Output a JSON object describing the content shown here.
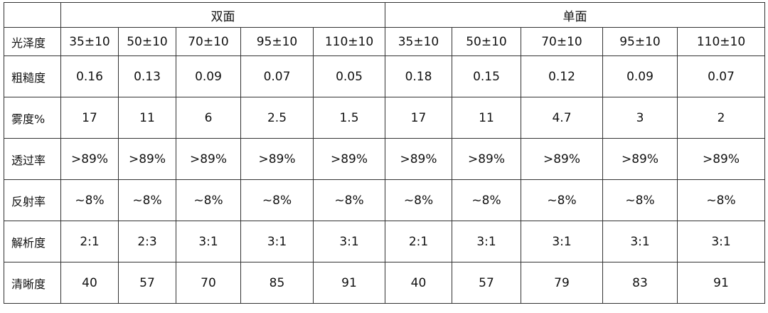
{
  "table": {
    "corner": "",
    "groups": [
      "双面",
      "单面"
    ],
    "header_label": "光泽度",
    "gloss": [
      "35±10",
      "50±10",
      "70±10",
      "95±10",
      "110±10",
      "35±10",
      "50±10",
      "70±10",
      "95±10",
      "110±10"
    ],
    "rows": [
      {
        "label": "粗糙度",
        "values": [
          "0.16",
          "0.13",
          "0.09",
          "0.07",
          "0.05",
          "0.18",
          "0.15",
          "0.12",
          "0.09",
          "0.07"
        ]
      },
      {
        "label": "雾度%",
        "values": [
          "17",
          "11",
          "6",
          "2.5",
          "1.5",
          "17",
          "11",
          "4.7",
          "3",
          "2"
        ]
      },
      {
        "label": "透过率",
        "values": [
          ">89%",
          ">89%",
          ">89%",
          ">89%",
          ">89%",
          ">89%",
          ">89%",
          ">89%",
          ">89%",
          ">89%"
        ]
      },
      {
        "label": "反射率",
        "values": [
          "~8%",
          "~8%",
          "~8%",
          "~8%",
          "~8%",
          "~8%",
          "~8%",
          "~8%",
          "~8%",
          "~8%"
        ]
      },
      {
        "label": "解析度",
        "values": [
          "2:1",
          "2:3",
          "3:1",
          "3:1",
          "3:1",
          "2:1",
          "3:1",
          "3:1",
          "3:1",
          "3:1"
        ]
      },
      {
        "label": "清晰度",
        "values": [
          "40",
          "57",
          "70",
          "85",
          "91",
          "40",
          "57",
          "79",
          "83",
          "91"
        ]
      }
    ]
  }
}
